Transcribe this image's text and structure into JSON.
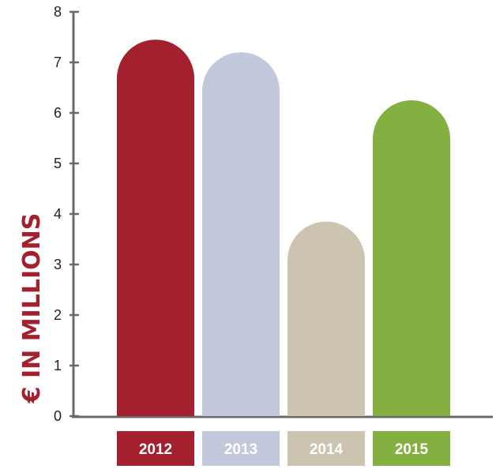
{
  "chart_data": {
    "type": "bar",
    "categories": [
      "2012",
      "2013",
      "2014",
      "2015"
    ],
    "values": [
      7.45,
      7.2,
      3.85,
      6.25
    ],
    "colors": [
      "#a3212f",
      "#c2c9dc",
      "#ccc4b1",
      "#84b041"
    ],
    "title": "",
    "xlabel": "",
    "ylabel": "€ IN MILLIONS",
    "ylim": [
      0,
      8
    ],
    "yticks": [
      "0",
      "1",
      "2",
      "3",
      "4",
      "5",
      "6",
      "7",
      "8"
    ],
    "grid": false,
    "legend": "none",
    "bar_shape": "rounded-top"
  }
}
